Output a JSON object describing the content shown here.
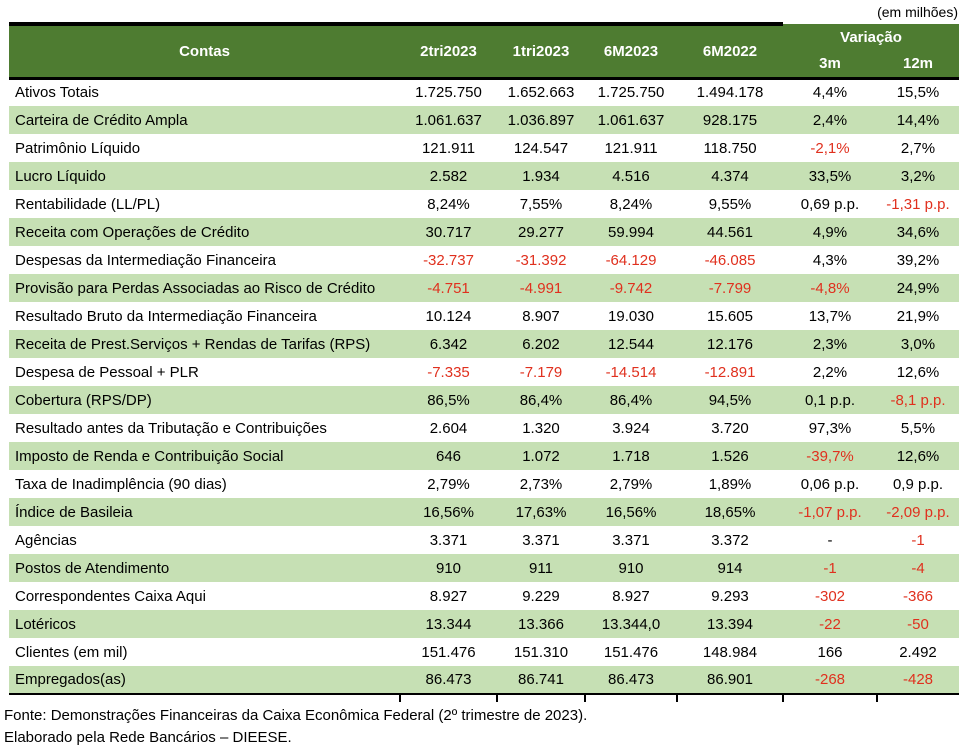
{
  "colors": {
    "header_bg": "#4e7c31",
    "stripe_bg": "#c6e0b4",
    "negative": "#e0301e",
    "header_text": "#ffffff"
  },
  "unit_note": "(em milhões)",
  "chart_data": {
    "type": "table",
    "header": {
      "contas": "Contas",
      "periods": [
        "2tri2023",
        "1tri2023",
        "6M2023",
        "6M2022"
      ],
      "variation_label": "Variação",
      "variation_subs": [
        "3m",
        "12m"
      ]
    },
    "rows": [
      {
        "label": "Ativos Totais",
        "values": [
          "1.725.750",
          "1.652.663",
          "1.725.750",
          "1.494.178",
          "4,4%",
          "15,5%"
        ],
        "red": []
      },
      {
        "label": "Carteira de Crédito Ampla",
        "values": [
          "1.061.637",
          "1.036.897",
          "1.061.637",
          "928.175",
          "2,4%",
          "14,4%"
        ],
        "red": []
      },
      {
        "label": "Patrimônio Líquido",
        "values": [
          "121.911",
          "124.547",
          "121.911",
          "118.750",
          "-2,1%",
          "2,7%"
        ],
        "red": [
          4
        ]
      },
      {
        "label": "Lucro Líquido",
        "values": [
          "2.582",
          "1.934",
          "4.516",
          "4.374",
          "33,5%",
          "3,2%"
        ],
        "red": []
      },
      {
        "label": "Rentabilidade (LL/PL)",
        "values": [
          "8,24%",
          "7,55%",
          "8,24%",
          "9,55%",
          "0,69 p.p.",
          "-1,31 p.p."
        ],
        "red": [
          5
        ]
      },
      {
        "label": "Receita com Operações de Crédito",
        "values": [
          "30.717",
          "29.277",
          "59.994",
          "44.561",
          "4,9%",
          "34,6%"
        ],
        "red": []
      },
      {
        "label": "Despesas da Intermediação Financeira",
        "values": [
          "-32.737",
          "-31.392",
          "-64.129",
          "-46.085",
          "4,3%",
          "39,2%"
        ],
        "red": [
          0,
          1,
          2,
          3
        ]
      },
      {
        "label": "Provisão para Perdas Associadas ao Risco de Crédito",
        "values": [
          "-4.751",
          "-4.991",
          "-9.742",
          "-7.799",
          "-4,8%",
          "24,9%"
        ],
        "red": [
          0,
          1,
          2,
          3,
          4
        ]
      },
      {
        "label": "Resultado Bruto da Intermediação Financeira",
        "values": [
          "10.124",
          "8.907",
          "19.030",
          "15.605",
          "13,7%",
          "21,9%"
        ],
        "red": []
      },
      {
        "label": "Receita de Prest.Serviços + Rendas de Tarifas (RPS)",
        "values": [
          "6.342",
          "6.202",
          "12.544",
          "12.176",
          "2,3%",
          "3,0%"
        ],
        "red": []
      },
      {
        "label": "Despesa de Pessoal + PLR",
        "values": [
          "-7.335",
          "-7.179",
          "-14.514",
          "-12.891",
          "2,2%",
          "12,6%"
        ],
        "red": [
          0,
          1,
          2,
          3
        ]
      },
      {
        "label": "Cobertura (RPS/DP)",
        "values": [
          "86,5%",
          "86,4%",
          "86,4%",
          "94,5%",
          "0,1 p.p.",
          "-8,1 p.p."
        ],
        "red": [
          5
        ]
      },
      {
        "label": "Resultado antes da Tributação e Contribuições",
        "values": [
          "2.604",
          "1.320",
          "3.924",
          "3.720",
          "97,3%",
          "5,5%"
        ],
        "red": []
      },
      {
        "label": "Imposto de Renda e Contribuição Social",
        "values": [
          "646",
          "1.072",
          "1.718",
          "1.526",
          "-39,7%",
          "12,6%"
        ],
        "red": [
          4
        ]
      },
      {
        "label": "Taxa de Inadimplência (90 dias)",
        "values": [
          "2,79%",
          "2,73%",
          "2,79%",
          "1,89%",
          "0,06 p.p.",
          "0,9 p.p."
        ],
        "red": []
      },
      {
        "label": "Índice de Basileia",
        "values": [
          "16,56%",
          "17,63%",
          "16,56%",
          "18,65%",
          "-1,07 p.p.",
          "-2,09 p.p."
        ],
        "red": [
          4,
          5
        ]
      },
      {
        "label": "Agências",
        "values": [
          "3.371",
          "3.371",
          "3.371",
          "3.372",
          "-",
          "-1"
        ],
        "red": [
          5
        ]
      },
      {
        "label": "Postos de Atendimento",
        "values": [
          "910",
          "911",
          "910",
          "914",
          "-1",
          "-4"
        ],
        "red": [
          4,
          5
        ]
      },
      {
        "label": "Correspondentes Caixa Aqui",
        "values": [
          "8.927",
          "9.229",
          "8.927",
          "9.293",
          "-302",
          "-366"
        ],
        "red": [
          4,
          5
        ]
      },
      {
        "label": "Lotéricos",
        "values": [
          "13.344",
          "13.366",
          "13.344,0",
          "13.394",
          "-22",
          "-50"
        ],
        "red": [
          4,
          5
        ]
      },
      {
        "label": "Clientes (em mil)",
        "values": [
          "151.476",
          "151.310",
          "151.476",
          "148.984",
          "166",
          "2.492"
        ],
        "red": []
      },
      {
        "label": "Empregados(as)",
        "values": [
          "86.473",
          "86.741",
          "86.473",
          "86.901",
          "-268",
          "-428"
        ],
        "red": [
          4,
          5
        ]
      }
    ],
    "footer_lines": [
      "Fonte: Demonstrações Financeiras da Caixa Econômica Federal (2º trimestre de 2023).",
      "Elaborado pela Rede Bancários – DIEESE."
    ]
  }
}
